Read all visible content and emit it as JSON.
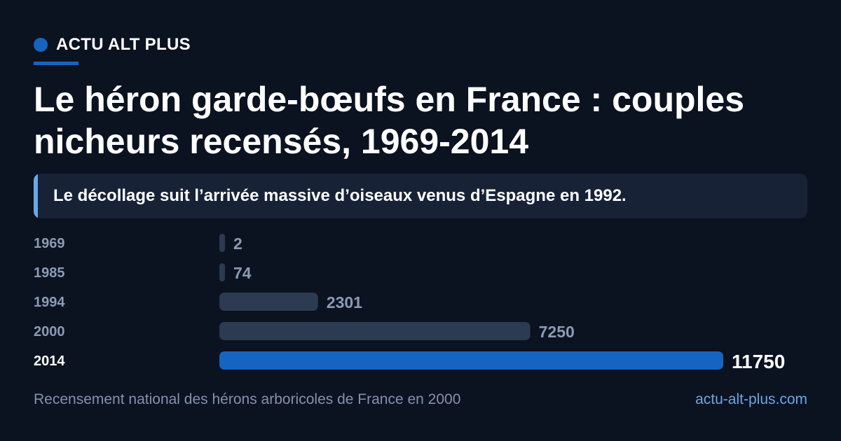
{
  "brand": {
    "name": "ACTU ALT PLUS",
    "accent_color": "#1565c0"
  },
  "title": "Le héron garde-bœufs en France : couples nicheurs recensés, 1969-2014",
  "subtitle": "Le décollage suit l’arrivée massive d’oiseaux venus d’Espagne en 1992.",
  "chart_data": {
    "type": "bar",
    "orientation": "horizontal",
    "categories": [
      "1969",
      "1985",
      "1994",
      "2000",
      "2014"
    ],
    "values": [
      2,
      74,
      2301,
      7250,
      11750
    ],
    "highlight": "2014",
    "colors": {
      "default_bar": "#2c3a52",
      "highlight_bar": "#1565c0",
      "label": "#8b9bb4",
      "highlight_label": "#ffffff"
    }
  },
  "footer": {
    "source": "Recensement national des hérons arboricoles de France en 2000",
    "site": "actu-alt-plus.com"
  }
}
